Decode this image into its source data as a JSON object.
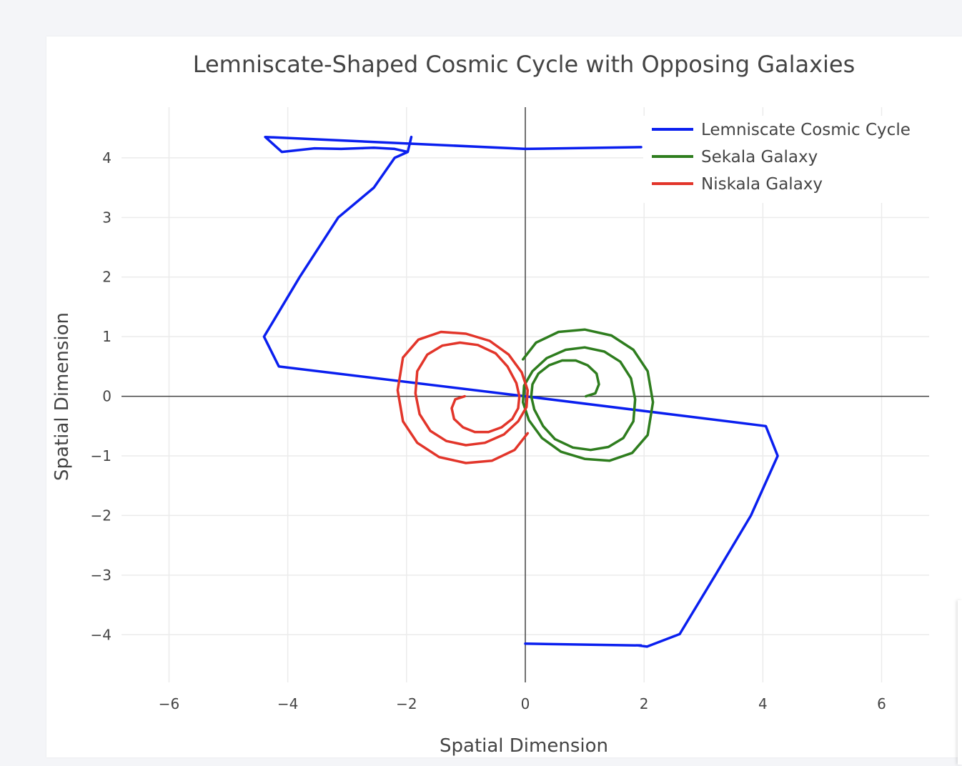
{
  "chart_data": {
    "type": "line",
    "title": "Lemniscate-Shaped Cosmic Cycle with Opposing Galaxies",
    "xlabel": "Spatial Dimension",
    "ylabel": "Spatial Dimension",
    "xlim": [
      -6.8,
      6.8
    ],
    "ylim": [
      -4.8,
      4.85
    ],
    "xticks": [
      -6,
      -4,
      -2,
      0,
      2,
      4,
      6
    ],
    "yticks": [
      -4,
      -3,
      -2,
      -1,
      0,
      1,
      2,
      3,
      4
    ],
    "xtick_labels": [
      "−6",
      "−4",
      "−2",
      "0",
      "2",
      "4",
      "6"
    ],
    "ytick_labels": [
      "−4",
      "−3",
      "−2",
      "−1",
      "0",
      "1",
      "2",
      "3",
      "4"
    ],
    "grid": true,
    "zero_lines": true,
    "legend_position": "top-right",
    "series": [
      {
        "name": "Lemniscate Cosmic Cycle",
        "color": "#0a1fef",
        "x": [
          0,
          1.95,
          1.9,
          2.05,
          2.6,
          3.2,
          3.8,
          4.25,
          4.05,
          0,
          -4.15,
          -4.4,
          -3.8,
          -3.15,
          -2.55,
          -2.2,
          -1.98,
          -1.92,
          -1.98,
          -2.2,
          -2.55,
          -3.1,
          -3.55,
          -4.1,
          -4.38,
          0,
          1.95
        ],
        "y": [
          -4.15,
          -4.18,
          -4.18,
          -4.2,
          -3.99,
          -3.0,
          -2.0,
          -1.0,
          -0.5,
          0,
          0.5,
          1.0,
          2.0,
          3.0,
          3.5,
          4.0,
          4.1,
          4.35,
          4.1,
          4.15,
          4.17,
          4.15,
          4.16,
          4.1,
          4.35,
          4.15,
          4.18
        ]
      },
      {
        "name": "Sekala Galaxy",
        "color": "#2e7d1e",
        "x": [
          1.02,
          1.18,
          1.24,
          1.2,
          1.05,
          0.85,
          0.62,
          0.4,
          0.22,
          0.12,
          0.1,
          0.15,
          0.3,
          0.5,
          0.8,
          1.1,
          1.4,
          1.65,
          1.82,
          1.85,
          1.78,
          1.6,
          1.33,
          1.0,
          0.68,
          0.36,
          0.12,
          -0.02,
          -0.04,
          0.06,
          0.28,
          0.6,
          1.0,
          1.42,
          1.8,
          2.06,
          2.15,
          2.06,
          1.82,
          1.45,
          1.0,
          0.56,
          0.18,
          -0.04
        ],
        "y": [
          0,
          0.05,
          0.2,
          0.38,
          0.52,
          0.6,
          0.6,
          0.52,
          0.38,
          0.2,
          0.0,
          -0.22,
          -0.5,
          -0.72,
          -0.86,
          -0.9,
          -0.85,
          -0.7,
          -0.42,
          -0.05,
          0.3,
          0.58,
          0.75,
          0.82,
          0.78,
          0.64,
          0.42,
          0.18,
          -0.1,
          -0.4,
          -0.7,
          -0.93,
          -1.05,
          -1.08,
          -0.95,
          -0.65,
          -0.1,
          0.42,
          0.78,
          1.02,
          1.12,
          1.08,
          0.9,
          0.62
        ]
      },
      {
        "name": "Niskala Galaxy",
        "color": "#e2352a",
        "x": [
          -1.02,
          -1.18,
          -1.24,
          -1.2,
          -1.05,
          -0.85,
          -0.62,
          -0.4,
          -0.22,
          -0.12,
          -0.1,
          -0.15,
          -0.3,
          -0.5,
          -0.8,
          -1.1,
          -1.4,
          -1.65,
          -1.82,
          -1.85,
          -1.78,
          -1.6,
          -1.33,
          -1.0,
          -0.68,
          -0.36,
          -0.12,
          0.02,
          0.04,
          -0.06,
          -0.28,
          -0.6,
          -1.0,
          -1.42,
          -1.8,
          -2.06,
          -2.15,
          -2.06,
          -1.82,
          -1.45,
          -1.0,
          -0.56,
          -0.18,
          0.04
        ],
        "y": [
          0,
          -0.05,
          -0.2,
          -0.38,
          -0.52,
          -0.6,
          -0.6,
          -0.52,
          -0.38,
          -0.2,
          0.0,
          0.22,
          0.5,
          0.72,
          0.86,
          0.9,
          0.85,
          0.7,
          0.42,
          0.05,
          -0.3,
          -0.58,
          -0.75,
          -0.82,
          -0.78,
          -0.64,
          -0.42,
          -0.18,
          0.1,
          0.4,
          0.7,
          0.93,
          1.05,
          1.08,
          0.95,
          0.65,
          0.1,
          -0.42,
          -0.78,
          -1.02,
          -1.12,
          -1.08,
          -0.9,
          -0.62
        ]
      }
    ]
  }
}
